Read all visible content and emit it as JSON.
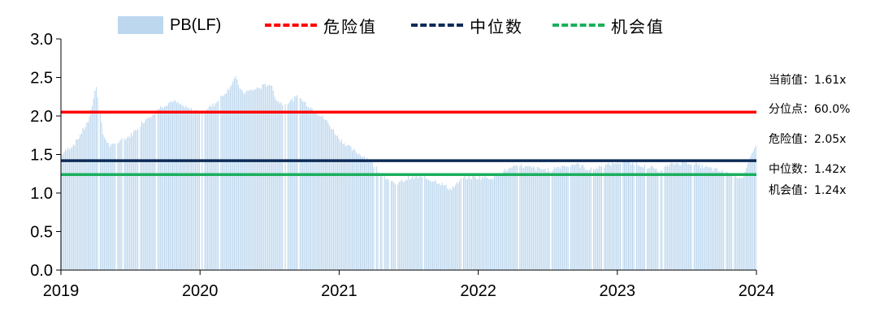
{
  "chart_data": {
    "type": "bar",
    "xlabel": "",
    "ylabel": "",
    "x_ticks": [
      "2019",
      "2020",
      "2021",
      "2022",
      "2023",
      "2024"
    ],
    "y_ticks": [
      "0.0",
      "0.5",
      "1.0",
      "1.5",
      "2.0",
      "2.5",
      "3.0"
    ],
    "xlim": [
      2019,
      2024
    ],
    "ylim": [
      0,
      3.0
    ],
    "grid": false,
    "legend_position": "top",
    "series": [
      {
        "name": "PB(LF)",
        "type": "bar",
        "color": "#bdd7ee",
        "x": [
          2019.0,
          2019.1,
          2019.2,
          2019.25,
          2019.3,
          2019.35,
          2019.4,
          2019.5,
          2019.6,
          2019.7,
          2019.8,
          2019.9,
          2020.0,
          2020.1,
          2020.2,
          2020.25,
          2020.3,
          2020.4,
          2020.5,
          2020.55,
          2020.6,
          2020.7,
          2020.8,
          2020.9,
          2021.0,
          2021.1,
          2021.2,
          2021.3,
          2021.4,
          2021.5,
          2021.6,
          2021.7,
          2021.8,
          2021.9,
          2022.0,
          2022.1,
          2022.2,
          2022.3,
          2022.4,
          2022.5,
          2022.6,
          2022.7,
          2022.8,
          2022.9,
          2023.0,
          2023.1,
          2023.2,
          2023.3,
          2023.4,
          2023.5,
          2023.6,
          2023.7,
          2023.8,
          2023.9,
          2024.0
        ],
        "y": [
          1.5,
          1.65,
          1.95,
          2.4,
          1.75,
          1.6,
          1.65,
          1.75,
          1.95,
          2.1,
          2.2,
          2.1,
          2.05,
          2.15,
          2.35,
          2.5,
          2.3,
          2.35,
          2.42,
          2.2,
          2.15,
          2.25,
          2.1,
          1.95,
          1.7,
          1.55,
          1.45,
          1.25,
          1.1,
          1.2,
          1.2,
          1.15,
          1.05,
          1.2,
          1.2,
          1.2,
          1.3,
          1.35,
          1.32,
          1.3,
          1.35,
          1.38,
          1.3,
          1.35,
          1.4,
          1.4,
          1.35,
          1.3,
          1.38,
          1.4,
          1.35,
          1.3,
          1.25,
          1.2,
          1.65
        ]
      },
      {
        "name": "危险值",
        "type": "hline",
        "value": 2.05,
        "color": "#ff0000"
      },
      {
        "name": "中位数",
        "type": "hline",
        "value": 1.42,
        "color": "#0d2b57"
      },
      {
        "name": "机会值",
        "type": "hline",
        "value": 1.24,
        "color": "#1aaf5d"
      }
    ],
    "annotations": [
      {
        "label": "当前值：",
        "value": "1.61x"
      },
      {
        "label": "分位点：",
        "value": "60.0%"
      },
      {
        "label": "危险值：",
        "value": "2.05x"
      },
      {
        "label": "中位数：",
        "value": "1.42x"
      },
      {
        "label": "机会值：",
        "value": "1.24x"
      }
    ]
  }
}
